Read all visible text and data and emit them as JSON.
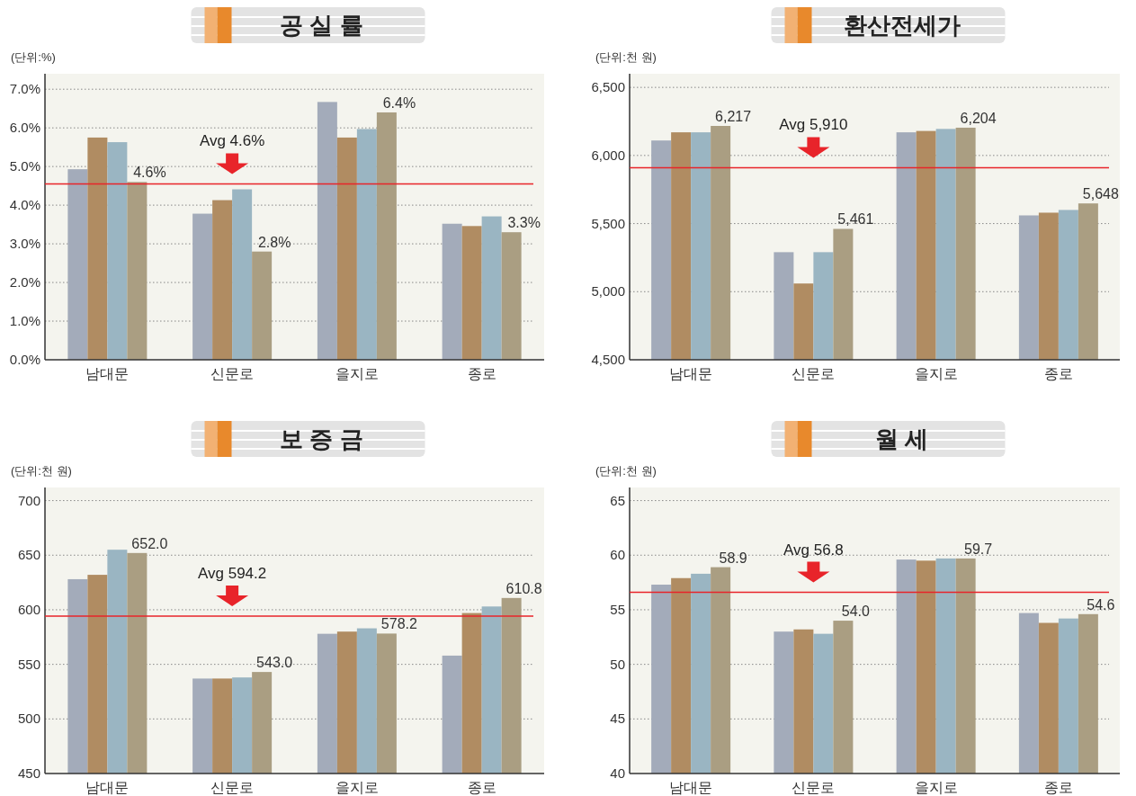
{
  "chart_data": [
    {
      "type": "bar",
      "title": "공 실 률",
      "ylabel": "(단위:%)",
      "categories": [
        "남대문",
        "신문로",
        "을지로",
        "종로"
      ],
      "series": [
        {
          "color": "#a3abba",
          "values": [
            4.93,
            3.78,
            6.67,
            3.52
          ]
        },
        {
          "color": "#b08c62",
          "values": [
            5.75,
            4.13,
            5.75,
            3.46
          ]
        },
        {
          "color": "#9ab5c2",
          "values": [
            5.63,
            4.41,
            5.97,
            3.71
          ]
        },
        {
          "color": "#aa9e82",
          "values": [
            4.6,
            2.8,
            6.4,
            3.3
          ],
          "value_labels": [
            "4.6%",
            "2.8%",
            "6.4%",
            "3.3%"
          ]
        }
      ],
      "ylim": [
        0,
        7.4
      ],
      "yticks": [
        {
          "value": 0,
          "label": "0.0%"
        },
        {
          "value": 1,
          "label": "1.0%"
        },
        {
          "value": 2,
          "label": "2.0%"
        },
        {
          "value": 3,
          "label": "3.0%"
        },
        {
          "value": 4,
          "label": "4.0%"
        },
        {
          "value": 5,
          "label": "5.0%"
        },
        {
          "value": 6,
          "label": "6.0%"
        },
        {
          "value": 7,
          "label": "7.0%"
        }
      ],
      "grid": "y",
      "ref_lines": [
        {
          "axis": "y",
          "value": 4.55,
          "label": "Avg 4.6%",
          "color": "#e8242a"
        }
      ]
    },
    {
      "type": "bar",
      "title": "환산전세가",
      "ylabel": "(단위:천 원)",
      "categories": [
        "남대문",
        "신문로",
        "을지로",
        "종로"
      ],
      "series": [
        {
          "color": "#a3abba",
          "values": [
            6110,
            5290,
            6170,
            5560
          ]
        },
        {
          "color": "#b08c62",
          "values": [
            6170,
            5060,
            6180,
            5580
          ]
        },
        {
          "color": "#9ab5c2",
          "values": [
            6170,
            5290,
            6195,
            5600
          ]
        },
        {
          "color": "#aa9e82",
          "values": [
            6217,
            5461,
            6204,
            5648
          ],
          "value_labels": [
            "6,217",
            "5,461",
            "6,204",
            "5,648"
          ]
        }
      ],
      "ylim": [
        4500,
        6600
      ],
      "yticks": [
        {
          "value": 4500,
          "label": "4,500"
        },
        {
          "value": 5000,
          "label": "5,000"
        },
        {
          "value": 5500,
          "label": "5,500"
        },
        {
          "value": 6000,
          "label": "6,000"
        },
        {
          "value": 6500,
          "label": "6,500"
        }
      ],
      "grid": "y",
      "ref_lines": [
        {
          "axis": "y",
          "value": 5910,
          "label": "Avg 5,910",
          "color": "#e8242a"
        }
      ]
    },
    {
      "type": "bar",
      "title": "보 증 금",
      "ylabel": "(단위:천 원)",
      "categories": [
        "남대문",
        "신문로",
        "을지로",
        "종로"
      ],
      "series": [
        {
          "color": "#a3abba",
          "values": [
            628,
            537,
            578,
            558
          ]
        },
        {
          "color": "#b08c62",
          "values": [
            632,
            537,
            580,
            597
          ]
        },
        {
          "color": "#9ab5c2",
          "values": [
            655,
            538,
            583,
            603
          ]
        },
        {
          "color": "#aa9e82",
          "values": [
            652.0,
            543.0,
            578.2,
            610.8
          ],
          "value_labels": [
            "652.0",
            "543.0",
            "578.2",
            "610.8"
          ]
        }
      ],
      "ylim": [
        450,
        712
      ],
      "yticks": [
        450,
        500,
        550,
        600,
        650,
        700
      ],
      "grid": "y",
      "ref_lines": [
        {
          "axis": "y",
          "value": 594.2,
          "label": "Avg 594.2",
          "color": "#e8242a"
        }
      ]
    },
    {
      "type": "bar",
      "title": "월 세",
      "ylabel": "(단위:천 원)",
      "categories": [
        "남대문",
        "신문로",
        "을지로",
        "종로"
      ],
      "series": [
        {
          "color": "#a3abba",
          "values": [
            57.3,
            53.0,
            59.6,
            54.7
          ]
        },
        {
          "color": "#b08c62",
          "values": [
            57.9,
            53.2,
            59.5,
            53.8
          ]
        },
        {
          "color": "#9ab5c2",
          "values": [
            58.3,
            52.8,
            59.7,
            54.2
          ]
        },
        {
          "color": "#aa9e82",
          "values": [
            58.9,
            54.0,
            59.7,
            54.6
          ],
          "value_labels": [
            "58.9",
            "54.0",
            "59.7",
            "54.6"
          ]
        }
      ],
      "ylim": [
        40,
        66.2
      ],
      "yticks": [
        40,
        45,
        50,
        55,
        60,
        65
      ],
      "grid": "y",
      "ref_lines": [
        {
          "axis": "y",
          "value": 56.6,
          "label": "Avg 56.8",
          "color": "#e8242a"
        }
      ]
    }
  ]
}
